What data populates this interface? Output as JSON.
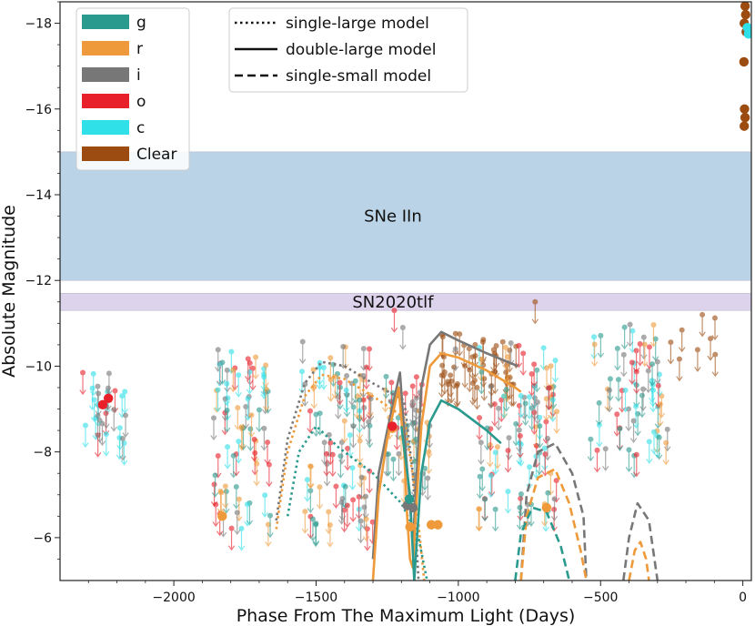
{
  "chart_data": {
    "type": "scatter",
    "xlabel": "Phase From The Maximum Light (Days)",
    "ylabel": "Absolute Magnitude",
    "xlim": [
      -2400,
      30
    ],
    "ylim": [
      -5,
      -18.5
    ],
    "y_inverted": true,
    "xticks": [
      -2000,
      -1500,
      -1000,
      -500,
      0
    ],
    "xtick_labels": [
      "−2000",
      "−1500",
      "−1000",
      "−500",
      "0"
    ],
    "yticks": [
      -6,
      -8,
      -10,
      -12,
      -14,
      -16,
      -18
    ],
    "ytick_labels": [
      "−6",
      "−8",
      "−10",
      "−12",
      "−14",
      "−16",
      "−18"
    ],
    "grid": false,
    "bands": [
      {
        "label": "SNe IIn",
        "y_range": [
          -12.0,
          -15.0
        ],
        "color": "#bad3e6"
      },
      {
        "label": "SN2020tlf",
        "y_range": [
          -11.3,
          -11.7
        ],
        "color": "#ddd3ec"
      }
    ],
    "filter_legend": {
      "placement": "top-left",
      "entries": [
        {
          "name": "g",
          "color": "#2a9a8e"
        },
        {
          "name": "r",
          "color": "#ef9a3a"
        },
        {
          "name": "i",
          "color": "#777777"
        },
        {
          "name": "o",
          "color": "#e8202a"
        },
        {
          "name": "c",
          "color": "#2fe0e8"
        },
        {
          "name": "Clear",
          "color": "#9c4c10"
        }
      ]
    },
    "model_legend": {
      "placement": "top-center",
      "entries": [
        {
          "name": "single-large model",
          "style": "dotted"
        },
        {
          "name": "double-large model",
          "style": "solid"
        },
        {
          "name": "single-small model",
          "style": "dashed"
        }
      ]
    },
    "upper_limits": {
      "marker": "circle with downward arrow",
      "arrow_length_mag": 0.5,
      "groups": [
        {
          "x_range": [
            -2320,
            -2160
          ],
          "y_range": [
            -8.1,
            -10.0
          ],
          "count": 28,
          "filters": [
            "o",
            "c",
            "i"
          ]
        },
        {
          "x_range": [
            -1860,
            -1660
          ],
          "y_range": [
            -6.2,
            -10.4
          ],
          "count": 70,
          "filters": [
            "o",
            "i",
            "g",
            "r",
            "c"
          ]
        },
        {
          "x_range": [
            -1550,
            -1300
          ],
          "y_range": [
            -6.2,
            -10.6
          ],
          "count": 90,
          "filters": [
            "o",
            "i",
            "g",
            "r",
            "c"
          ]
        },
        {
          "x_range": [
            -1260,
            -1100
          ],
          "y_range": [
            -7.2,
            -9.8
          ],
          "count": 40,
          "filters": [
            "i",
            "g",
            "r",
            "o"
          ]
        },
        {
          "x_range": [
            -1060,
            -790
          ],
          "y_range": [
            -9.5,
            -10.8
          ],
          "count": 45,
          "filters": [
            "Clear"
          ]
        },
        {
          "x_range": [
            -930,
            -650
          ],
          "y_range": [
            -6.5,
            -10.6
          ],
          "count": 90,
          "filters": [
            "o",
            "i",
            "g",
            "r",
            "c"
          ]
        },
        {
          "x_range": [
            -540,
            -260
          ],
          "y_range": [
            -7.9,
            -11.0
          ],
          "count": 60,
          "filters": [
            "o",
            "i",
            "g",
            "r",
            "c"
          ]
        },
        {
          "x_range": [
            -260,
            -90
          ],
          "y_range": [
            -10.0,
            -11.3
          ],
          "count": 8,
          "filters": [
            "Clear"
          ]
        }
      ],
      "notable": [
        {
          "x": -1225,
          "y": -11.3,
          "filter": "o"
        },
        {
          "x": -1195,
          "y": -10.9,
          "filter": "i"
        },
        {
          "x": -730,
          "y": -11.5,
          "filter": "Clear"
        },
        {
          "x": -1010,
          "y": -10.4,
          "filter": "i"
        }
      ]
    },
    "detections": [
      {
        "filter": "r",
        "points": [
          [
            -1830,
            -6.5
          ],
          [
            -1232,
            -8.55
          ],
          [
            -1170,
            -6.25
          ],
          [
            -1095,
            -6.3
          ],
          [
            -1072,
            -6.3
          ],
          [
            -690,
            -6.7
          ]
        ]
      },
      {
        "filter": "o",
        "points": [
          [
            -2250,
            -9.1
          ],
          [
            -2230,
            -9.25
          ],
          [
            -1232,
            -8.6
          ]
        ]
      },
      {
        "filter": "i",
        "points": [
          [
            -1180,
            -6.75
          ],
          [
            -1160,
            -6.7
          ]
        ]
      },
      {
        "filter": "g",
        "points": [
          [
            -1172,
            -6.9
          ]
        ]
      },
      {
        "filter": "Clear",
        "points": [
          [
            3,
            -18.6
          ],
          [
            8,
            -18.4
          ],
          [
            10,
            -18.2
          ],
          [
            5,
            -18.0
          ],
          [
            12,
            -17.8
          ],
          [
            4,
            -17.1
          ],
          [
            6,
            -16.0
          ],
          [
            8,
            -15.8
          ],
          [
            5,
            -15.6
          ]
        ]
      },
      {
        "filter": "c",
        "points": [
          [
            16,
            -17.9
          ],
          [
            20,
            -17.75
          ]
        ]
      }
    ],
    "models": [
      {
        "name": "single-large model",
        "filter": "i",
        "style": "dotted",
        "points": [
          [
            -1640,
            -6.4
          ],
          [
            -1600,
            -8.3
          ],
          [
            -1540,
            -9.6
          ],
          [
            -1480,
            -10.1
          ],
          [
            -1400,
            -10.0
          ],
          [
            -1300,
            -9.6
          ],
          [
            -1190,
            -9.2
          ],
          [
            -1160,
            -7.5
          ],
          [
            -1140,
            -5.0
          ]
        ]
      },
      {
        "name": "single-large model",
        "filter": "r",
        "style": "dotted",
        "points": [
          [
            -1640,
            -6.2
          ],
          [
            -1600,
            -8.0
          ],
          [
            -1540,
            -9.3
          ],
          [
            -1480,
            -9.8
          ],
          [
            -1400,
            -9.7
          ],
          [
            -1300,
            -9.3
          ],
          [
            -1190,
            -8.8
          ],
          [
            -1150,
            -7.0
          ],
          [
            -1120,
            -5.0
          ]
        ]
      },
      {
        "name": "single-large model",
        "filter": "g",
        "style": "dotted",
        "points": [
          [
            -1600,
            -6.5
          ],
          [
            -1560,
            -8.0
          ],
          [
            -1500,
            -8.6
          ],
          [
            -1420,
            -8.1
          ],
          [
            -1300,
            -7.5
          ],
          [
            -1200,
            -6.8
          ],
          [
            -1140,
            -6.0
          ],
          [
            -1110,
            -5.0
          ]
        ]
      },
      {
        "name": "double-large model",
        "filter": "i",
        "style": "solid",
        "points": [
          [
            -1300,
            -5.5
          ],
          [
            -1280,
            -7.5
          ],
          [
            -1250,
            -8.5
          ],
          [
            -1205,
            -9.85
          ],
          [
            -1185,
            -8.0
          ],
          [
            -1170,
            -6.8
          ],
          [
            -1160,
            -5.8
          ],
          [
            -1150,
            -7.0
          ],
          [
            -1130,
            -9.5
          ],
          [
            -1100,
            -10.5
          ],
          [
            -1060,
            -10.8
          ],
          [
            -1000,
            -10.6
          ],
          [
            -900,
            -10.3
          ],
          [
            -790,
            -10.0
          ]
        ]
      },
      {
        "name": "double-large model",
        "filter": "r",
        "style": "solid",
        "points": [
          [
            -1300,
            -5.0
          ],
          [
            -1280,
            -7.0
          ],
          [
            -1250,
            -8.3
          ],
          [
            -1210,
            -9.5
          ],
          [
            -1190,
            -8.0
          ],
          [
            -1180,
            -6.5
          ],
          [
            -1170,
            -5.5
          ],
          [
            -1160,
            -5.3
          ],
          [
            -1150,
            -6.5
          ],
          [
            -1130,
            -8.6
          ],
          [
            -1100,
            -10.0
          ],
          [
            -1060,
            -10.3
          ],
          [
            -1000,
            -10.2
          ],
          [
            -900,
            -9.9
          ],
          [
            -800,
            -9.5
          ],
          [
            -780,
            -9.4
          ]
        ]
      },
      {
        "name": "double-large model",
        "filter": "g",
        "style": "solid",
        "points": [
          [
            -1200,
            -8.6
          ],
          [
            -1170,
            -7.0
          ],
          [
            -1155,
            -5.0
          ],
          [
            -1150,
            -5.5
          ],
          [
            -1130,
            -7.5
          ],
          [
            -1100,
            -8.7
          ],
          [
            -1060,
            -9.2
          ],
          [
            -1000,
            -9.0
          ],
          [
            -900,
            -8.5
          ],
          [
            -850,
            -8.2
          ]
        ]
      },
      {
        "name": "single-small model",
        "filter": "i",
        "style": "dashed",
        "points": [
          [
            -780,
            -5.0
          ],
          [
            -760,
            -7.0
          ],
          [
            -720,
            -8.0
          ],
          [
            -660,
            -8.2
          ],
          [
            -600,
            -7.5
          ],
          [
            -560,
            -6.5
          ],
          [
            -550,
            -5.0
          ]
        ]
      },
      {
        "name": "single-small model",
        "filter": "r",
        "style": "dashed",
        "points": [
          [
            -780,
            -5.0
          ],
          [
            -760,
            -6.5
          ],
          [
            -720,
            -7.4
          ],
          [
            -660,
            -7.6
          ],
          [
            -610,
            -6.8
          ],
          [
            -570,
            -5.7
          ],
          [
            -550,
            -5.0
          ]
        ]
      },
      {
        "name": "single-small model",
        "filter": "g",
        "style": "dashed",
        "points": [
          [
            -800,
            -5.0
          ],
          [
            -780,
            -6.1
          ],
          [
            -740,
            -6.7
          ],
          [
            -690,
            -6.6
          ],
          [
            -640,
            -5.8
          ],
          [
            -610,
            -5.0
          ]
        ]
      },
      {
        "name": "single-small model",
        "filter": "i",
        "style": "dashed",
        "points": [
          [
            -420,
            -5.0
          ],
          [
            -400,
            -6.0
          ],
          [
            -370,
            -6.8
          ],
          [
            -330,
            -6.4
          ],
          [
            -300,
            -5.0
          ]
        ]
      },
      {
        "name": "single-small model",
        "filter": "r",
        "style": "dashed",
        "points": [
          [
            -400,
            -5.0
          ],
          [
            -380,
            -5.7
          ],
          [
            -360,
            -5.9
          ],
          [
            -340,
            -5.5
          ],
          [
            -330,
            -5.0
          ]
        ]
      }
    ]
  }
}
